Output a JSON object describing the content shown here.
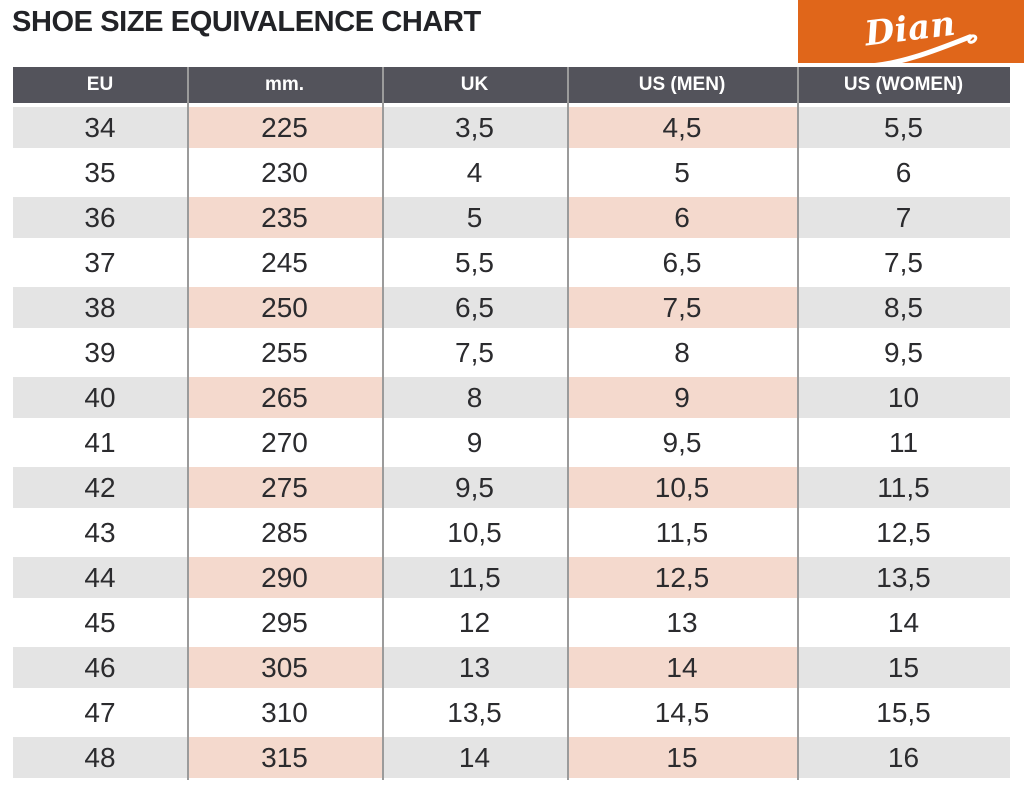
{
  "page": {
    "title": "SHOE SIZE EQUIVALENCE CHART"
  },
  "logo": {
    "text": "Dian",
    "bg_color": "#E0661A",
    "text_color": "#FFFFFF"
  },
  "table": {
    "columns": [
      "EU",
      "mm.",
      "UK",
      "US (MEN)",
      "US (WOMEN)"
    ],
    "rows": [
      [
        "34",
        "225",
        "3,5",
        "4,5",
        "5,5"
      ],
      [
        "35",
        "230",
        "4",
        "5",
        "6"
      ],
      [
        "36",
        "235",
        "5",
        "6",
        "7"
      ],
      [
        "37",
        "245",
        "5,5",
        "6,5",
        "7,5"
      ],
      [
        "38",
        "250",
        "6,5",
        "7,5",
        "8,5"
      ],
      [
        "39",
        "255",
        "7,5",
        "8",
        "9,5"
      ],
      [
        "40",
        "265",
        "8",
        "9",
        "10"
      ],
      [
        "41",
        "270",
        "9",
        "9,5",
        "11"
      ],
      [
        "42",
        "275",
        "9,5",
        "10,5",
        "11,5"
      ],
      [
        "43",
        "285",
        "10,5",
        "11,5",
        "12,5"
      ],
      [
        "44",
        "290",
        "11,5",
        "12,5",
        "13,5"
      ],
      [
        "45",
        "295",
        "12",
        "13",
        "14"
      ],
      [
        "46",
        "305",
        "13",
        "14",
        "15"
      ],
      [
        "47",
        "310",
        "13,5",
        "14,5",
        "15,5"
      ],
      [
        "48",
        "315",
        "14",
        "15",
        "16"
      ]
    ],
    "colors": {
      "header_bg": "#53535B",
      "header_text": "#FFFFFF",
      "stripe_gray": "#E4E4E4",
      "stripe_pink": "#F4D9CD",
      "divider": "#9B9B9B",
      "cell_text": "#2B2B2E"
    }
  }
}
